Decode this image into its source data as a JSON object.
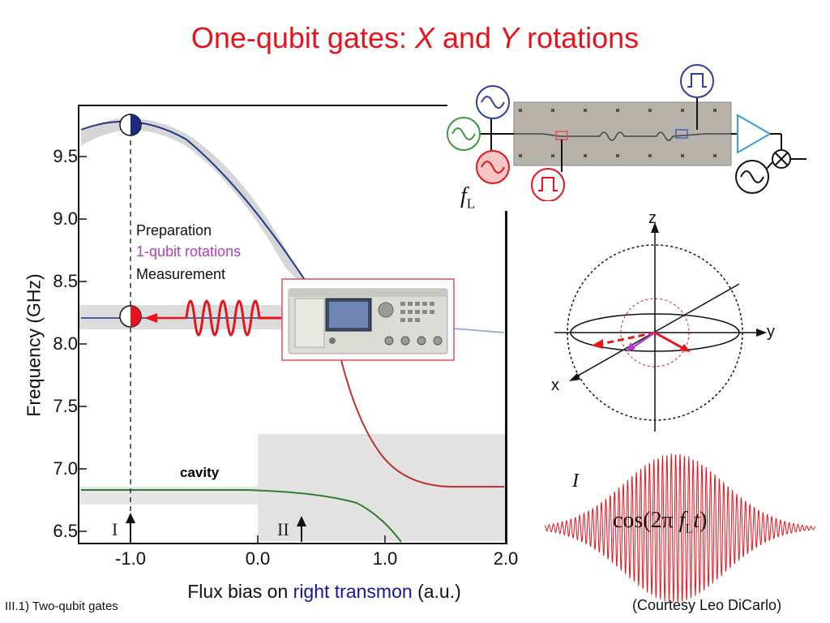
{
  "title": {
    "prefix": "One-qubit gates: ",
    "x": "X",
    "and": " and ",
    "y": "Y",
    "suffix": " rotations"
  },
  "plot": {
    "y_axis_label": "Frequency (GHz)",
    "y_ticks": [
      "9.5",
      "9.0",
      "8.5",
      "8.0",
      "7.5",
      "7.0",
      "6.5"
    ],
    "x_ticks": [
      "-1.0",
      "0.0",
      "1.0",
      "2.0"
    ],
    "x_axis_label": {
      "prefix": "Flux bias on ",
      "highlight": "right transmon",
      "suffix": " (a.u.)"
    },
    "legend": {
      "preparation": "Preparation",
      "rotations": "1-qubit rotations",
      "measurement": "Measurement"
    },
    "cavity_label": "cavity",
    "marker_I": "I",
    "marker_II": "II"
  },
  "circuit": {
    "fL_symbol": "f",
    "fL_sub": "L"
  },
  "bloch": {
    "z_label": "z",
    "y_label": "y",
    "x_label": "x"
  },
  "pulse": {
    "I_label": "I",
    "cos_prefix": "cos(2",
    "pi": "π",
    "f": "f",
    "sub": "L",
    "t": "t",
    "close": ")"
  },
  "footer": {
    "left": "III.1) Two-qubit gates",
    "right": "(Courtesy Leo DiCarlo)"
  },
  "colors": {
    "title": "#e8141c",
    "highlight": "#1414a0",
    "rotations": "#b43cc8",
    "pulse": "#e8141c"
  }
}
